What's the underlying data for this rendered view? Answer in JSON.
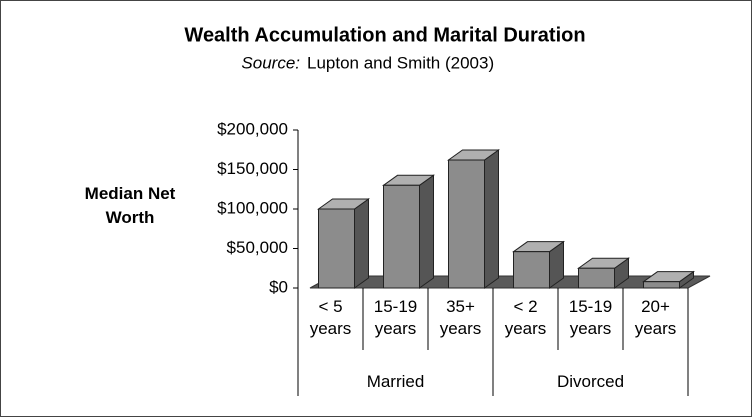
{
  "chart_data": {
    "type": "bar3d",
    "title": "Wealth Accumulation and Marital Duration",
    "source_label": "Source:",
    "subtitle": "Lupton and Smith (2003)",
    "y_label": "Median Net Worth",
    "categories": [
      "< 5 years",
      "15-19 years",
      "35+ years",
      "< 2 years",
      "15-19 years",
      "20+ years"
    ],
    "groups": [
      {
        "name": "Married",
        "count": 3
      },
      {
        "name": "Divorced",
        "count": 3
      }
    ],
    "values": [
      100000,
      130000,
      162000,
      46000,
      25000,
      8000
    ],
    "color": "#8c8c8c",
    "ylim": [
      0,
      200000
    ],
    "yticks": [
      {
        "value": 0,
        "label": "$0"
      },
      {
        "value": 50000,
        "label": "$50,000"
      },
      {
        "value": 100000,
        "label": "$100,000"
      },
      {
        "value": 150000,
        "label": "$150,000"
      },
      {
        "value": 200000,
        "label": "$200,000"
      }
    ]
  }
}
